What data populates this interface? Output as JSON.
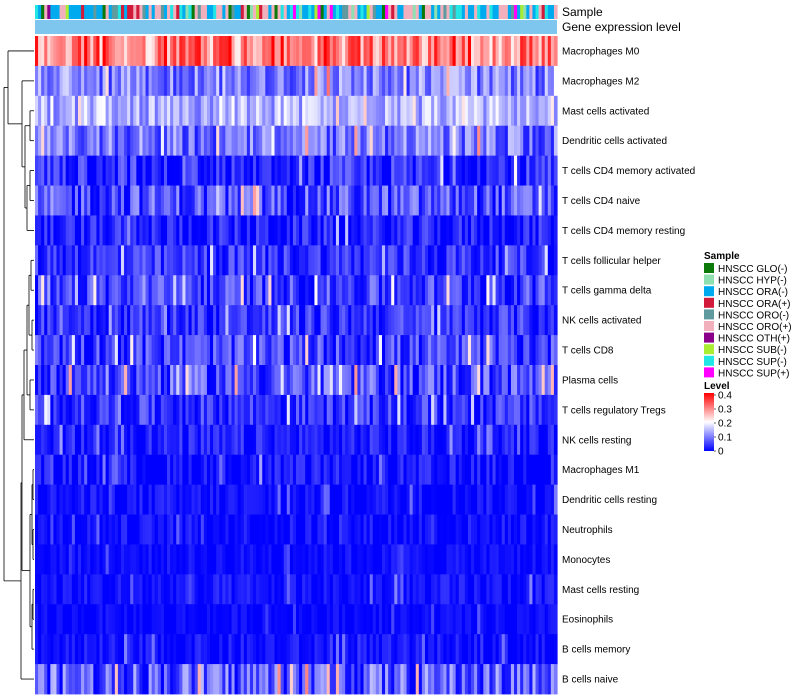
{
  "chart_data": {
    "type": "heatmap",
    "annotation_labels": {
      "sample": "Sample",
      "gene_expression": "Gene expression level"
    },
    "rows": [
      {
        "label": "Macrophages M0",
        "mean": 0.3,
        "spread": 0.09
      },
      {
        "label": "Macrophages M2",
        "mean": 0.1,
        "spread": 0.07
      },
      {
        "label": "Mast cells activated",
        "mean": 0.14,
        "spread": 0.06
      },
      {
        "label": "Dendritic cells activated",
        "mean": 0.09,
        "spread": 0.07
      },
      {
        "label": "T cells CD4 memory activated",
        "mean": 0.03,
        "spread": 0.06
      },
      {
        "label": "T cells CD4 naive",
        "mean": 0.06,
        "spread": 0.07
      },
      {
        "label": "T cells CD4 memory resting",
        "mean": 0.02,
        "spread": 0.05
      },
      {
        "label": "T cells follicular helper",
        "mean": 0.04,
        "spread": 0.05
      },
      {
        "label": "T cells gamma delta",
        "mean": 0.05,
        "spread": 0.06
      },
      {
        "label": "NK cells activated",
        "mean": 0.04,
        "spread": 0.05
      },
      {
        "label": "T cells CD8",
        "mean": 0.05,
        "spread": 0.06
      },
      {
        "label": "Plasma cells",
        "mean": 0.06,
        "spread": 0.07
      },
      {
        "label": "T cells regulatory  Tregs",
        "mean": 0.04,
        "spread": 0.05
      },
      {
        "label": "NK cells resting",
        "mean": 0.02,
        "spread": 0.04
      },
      {
        "label": "Macrophages M1",
        "mean": 0.01,
        "spread": 0.04
      },
      {
        "label": "Dendritic cells resting",
        "mean": 0.01,
        "spread": 0.03
      },
      {
        "label": "Neutrophils",
        "mean": 0.01,
        "spread": 0.03
      },
      {
        "label": "Monocytes",
        "mean": 0.01,
        "spread": 0.02
      },
      {
        "label": "Mast cells resting",
        "mean": 0.01,
        "spread": 0.03
      },
      {
        "label": "Eosinophils",
        "mean": 0.005,
        "spread": 0.02
      },
      {
        "label": "B cells memory",
        "mean": 0.01,
        "spread": 0.03
      },
      {
        "label": "B cells naive",
        "mean": 0.07,
        "spread": 0.08
      }
    ],
    "n_columns": 170,
    "sample_legend": {
      "title": "Sample",
      "entries": [
        {
          "label": "HNSCC GLO(-)",
          "color": "#0b7a0b"
        },
        {
          "label": "HNSCC HYP(-)",
          "color": "#8fe0b0"
        },
        {
          "label": "HNSCC ORA(-)",
          "color": "#00aaee"
        },
        {
          "label": "HNSCC ORA(+)",
          "color": "#d21a3a"
        },
        {
          "label": "HNSCC ORO(-)",
          "color": "#5f9a9e"
        },
        {
          "label": "HNSCC ORO(+)",
          "color": "#f2b0bc"
        },
        {
          "label": "HNSCC OTH(+)",
          "color": "#8b008b"
        },
        {
          "label": "HNSCC SUB(-)",
          "color": "#aaee33"
        },
        {
          "label": "HNSCC SUP(-)",
          "color": "#22e6e6"
        },
        {
          "label": "HNSCC SUP(+)",
          "color": "#ff00ff"
        }
      ]
    },
    "level_legend": {
      "title": "Level",
      "ticks": [
        "0.4",
        "0.3",
        "0.2",
        "0.1",
        "0"
      ],
      "range": [
        0,
        0.4
      ],
      "colors": {
        "low": "#0000ff",
        "mid": "#ffffff",
        "high": "#ff0000"
      }
    },
    "gene_expression_color": "#7ec6ee"
  }
}
